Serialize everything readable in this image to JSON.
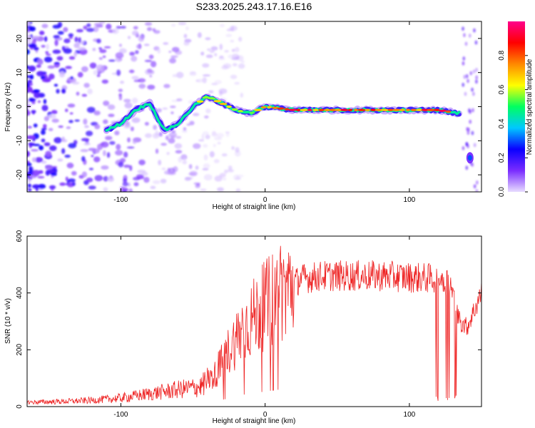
{
  "figure": {
    "title": "S233.2025.243.17.16.E16"
  },
  "chart_data": [
    {
      "type": "heatmap",
      "title": "S233.2025.243.17.16.E16",
      "xlabel": "Height of straight line (km)",
      "ylabel": "Frequency (Hz)",
      "xlim": [
        -165,
        150
      ],
      "ylim": [
        -25,
        25
      ],
      "x_ticks": [
        -100,
        0,
        100
      ],
      "y_ticks": [
        20,
        10,
        0,
        -10,
        -20
      ],
      "colorbar": {
        "label": "Normalized spectral amplitude",
        "range": [
          0,
          1
        ],
        "ticks": [
          0.0,
          0.2,
          0.4,
          0.6,
          0.8
        ],
        "colors": [
          "#e8dcff",
          "#7a2cff",
          "#0a00ff",
          "#00c8ff",
          "#00ff60",
          "#ffff00",
          "#ff8800",
          "#ff0000",
          "#ff008c"
        ]
      },
      "ridge": {
        "description_free": true,
        "x": [
          -110,
          -100,
          -90,
          -80,
          -70,
          -60,
          -50,
          -40,
          -30,
          -20,
          -10,
          0,
          20,
          40,
          60,
          80,
          100,
          120,
          135
        ],
        "y": [
          -7,
          -5,
          -1,
          1,
          -7,
          -5,
          0,
          3,
          1,
          -1,
          -2,
          0,
          -1,
          -1,
          -1,
          -1,
          -1,
          -1,
          -2
        ]
      }
    },
    {
      "type": "line",
      "xlabel": "Height of straight line (km)",
      "ylabel": "SNR (10 * v/v)",
      "xlim": [
        -165,
        150
      ],
      "ylim": [
        0,
        600
      ],
      "x_ticks": [
        -100,
        0,
        100
      ],
      "y_ticks": [
        0,
        200,
        400,
        600
      ],
      "series": [
        {
          "name": "SNR",
          "color": "#ee2222",
          "envelope_x": [
            -165,
            -140,
            -120,
            -100,
            -80,
            -60,
            -45,
            -35,
            -25,
            -15,
            -5,
            5,
            15,
            25,
            40,
            60,
            80,
            100,
            120,
            128,
            135,
            140,
            150
          ],
          "envelope_y": [
            15,
            18,
            22,
            30,
            45,
            60,
            70,
            110,
            200,
            280,
            330,
            380,
            420,
            450,
            460,
            460,
            460,
            455,
            450,
            440,
            300,
            280,
            400
          ]
        }
      ]
    }
  ]
}
